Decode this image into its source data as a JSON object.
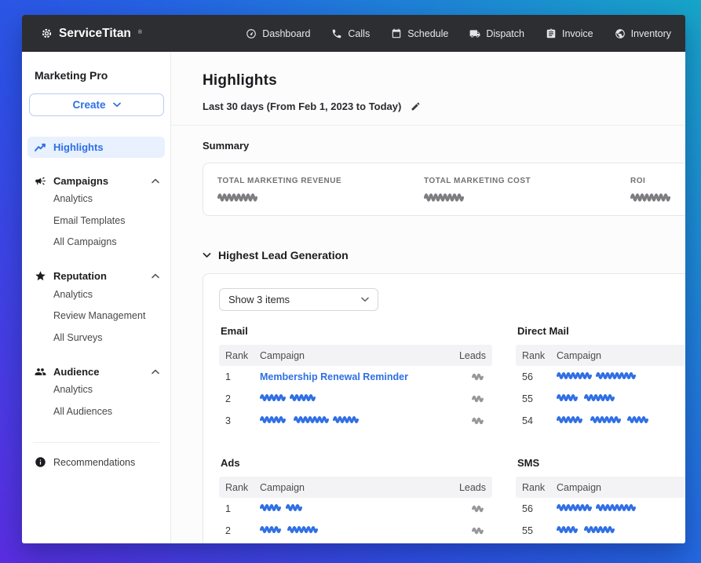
{
  "colors": {
    "accent_blue": "#2f6fe4",
    "active_item_bg": "#e8f1fd",
    "navbar_bg": "#2d2e31",
    "scribble_gray": "#96969a",
    "scribble_dark": "#7c7c80"
  },
  "navbar": {
    "brand": "ServiceTitan",
    "brand_reg": "®",
    "items": [
      {
        "label": "Dashboard",
        "icon": "dashboard-gauge-icon"
      },
      {
        "label": "Calls",
        "icon": "phone-icon"
      },
      {
        "label": "Schedule",
        "icon": "calendar-icon"
      },
      {
        "label": "Dispatch",
        "icon": "truck-icon"
      },
      {
        "label": "Invoice",
        "icon": "invoice-icon"
      },
      {
        "label": "Inventory",
        "icon": "inventory-icon"
      }
    ]
  },
  "sidebar": {
    "title": "Marketing Pro",
    "create_button": {
      "label": "Create"
    },
    "highlights_item": {
      "label": "Highlights",
      "active": true
    },
    "groups": [
      {
        "label": "Campaigns",
        "icon": "megaphone-icon",
        "expanded": true,
        "children": [
          "Analytics",
          "Email Templates",
          "All Campaigns"
        ]
      },
      {
        "label": "Reputation",
        "icon": "star-icon",
        "expanded": true,
        "children": [
          "Analytics",
          "Review Management",
          "All Surveys"
        ]
      },
      {
        "label": "Audience",
        "icon": "people-icon",
        "expanded": true,
        "children": [
          "Analytics",
          "All Audiences"
        ]
      }
    ],
    "footer_item": {
      "label": "Recommendations"
    }
  },
  "main": {
    "title": "Highlights",
    "date_range": "Last 30 days  (From Feb 1, 2023 to Today)",
    "summary": {
      "heading": "Summary",
      "metrics": [
        {
          "label": "TOTAL MARKETING REVENUE",
          "redacted": true,
          "scribble": [
            55
          ]
        },
        {
          "label": "TOTAL MARKETING COST",
          "redacted": true,
          "scribble": [
            55
          ]
        },
        {
          "label": "ROI",
          "redacted": true,
          "scribble": [
            55
          ]
        }
      ]
    },
    "lead_generation": {
      "heading": "Highest Lead Generation",
      "show_select": "Show 3 items",
      "tables": [
        {
          "title": "Email",
          "columns": [
            "Rank",
            "Campaign",
            "Leads"
          ],
          "rows": [
            {
              "rank": "1",
              "campaign": "Membership Renewal Reminder",
              "leads_redacted": true,
              "leads_scribble": [
                18
              ]
            },
            {
              "rank": "2",
              "campaign_redacted": true,
              "campaign_scribble": [
                33,
                38
              ],
              "leads_redacted": true,
              "leads_scribble": [
                18
              ]
            },
            {
              "rank": "3",
              "campaign_redacted": true,
              "campaign_scribble": [
                38,
                45,
                33
              ],
              "leads_redacted": true,
              "leads_scribble": [
                18
              ]
            }
          ]
        },
        {
          "title": "Direct Mail",
          "columns": [
            "Rank",
            "Campaign"
          ],
          "rows": [
            {
              "rank": "56",
              "campaign_redacted": true,
              "campaign_scribble": [
                45,
                52
              ]
            },
            {
              "rank": "55",
              "campaign_redacted": true,
              "campaign_scribble": [
                30,
                42
              ]
            },
            {
              "rank": "54",
              "campaign_redacted": true,
              "campaign_scribble": [
                38,
                42,
                30
              ]
            }
          ]
        },
        {
          "title": "Ads",
          "columns": [
            "Rank",
            "Campaign",
            "Leads"
          ],
          "rows": [
            {
              "rank": "1",
              "campaign_redacted": true,
              "campaign_scribble": [
                28,
                22
              ],
              "leads_redacted": true,
              "leads_scribble": [
                18
              ]
            },
            {
              "rank": "2",
              "campaign_redacted": true,
              "campaign_scribble": [
                30,
                44
              ],
              "leads_redacted": true,
              "leads_scribble": [
                18
              ]
            }
          ]
        },
        {
          "title": "SMS",
          "columns": [
            "Rank",
            "Campaign"
          ],
          "rows": [
            {
              "rank": "56",
              "campaign_redacted": true,
              "campaign_scribble": [
                45,
                52
              ]
            },
            {
              "rank": "55",
              "campaign_redacted": true,
              "campaign_scribble": [
                30,
                42
              ]
            }
          ]
        }
      ]
    }
  }
}
